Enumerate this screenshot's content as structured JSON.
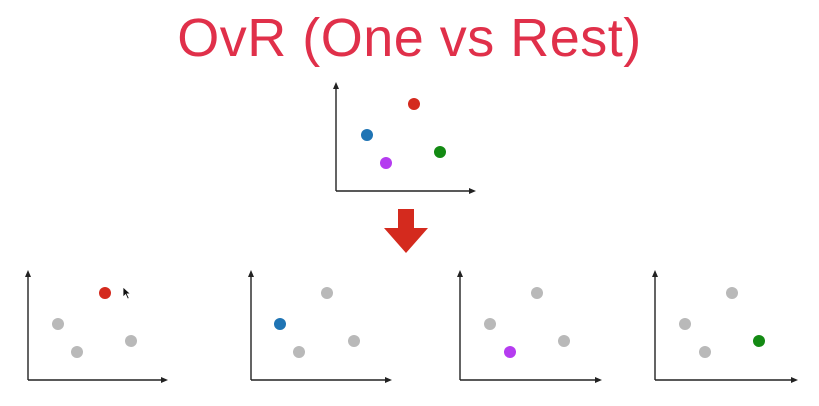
{
  "slide": {
    "title": "OvR (One vs Rest)",
    "title_color": "#e0304a"
  },
  "colors": {
    "class_red": "#d42a1e",
    "class_blue": "#1f74b4",
    "class_purple": "#b53cf0",
    "class_green": "#138a13",
    "inactive_gray": "#b9b9b9",
    "axis": "#222222",
    "arrow": "#d42a1e"
  },
  "icons": {
    "transform_arrow": "down-arrow-icon",
    "pointer": "mouse-cursor-icon"
  },
  "panels": [
    {
      "name": "overview-plot",
      "highlight": [
        "red",
        "blue",
        "purple",
        "green"
      ]
    },
    {
      "name": "red-vs-rest-plot",
      "highlight": [
        "red"
      ]
    },
    {
      "name": "blue-vs-rest-plot",
      "highlight": [
        "blue"
      ]
    },
    {
      "name": "purple-vs-rest-plot",
      "highlight": [
        "purple"
      ]
    },
    {
      "name": "green-vs-rest-plot",
      "highlight": [
        "green"
      ]
    }
  ]
}
